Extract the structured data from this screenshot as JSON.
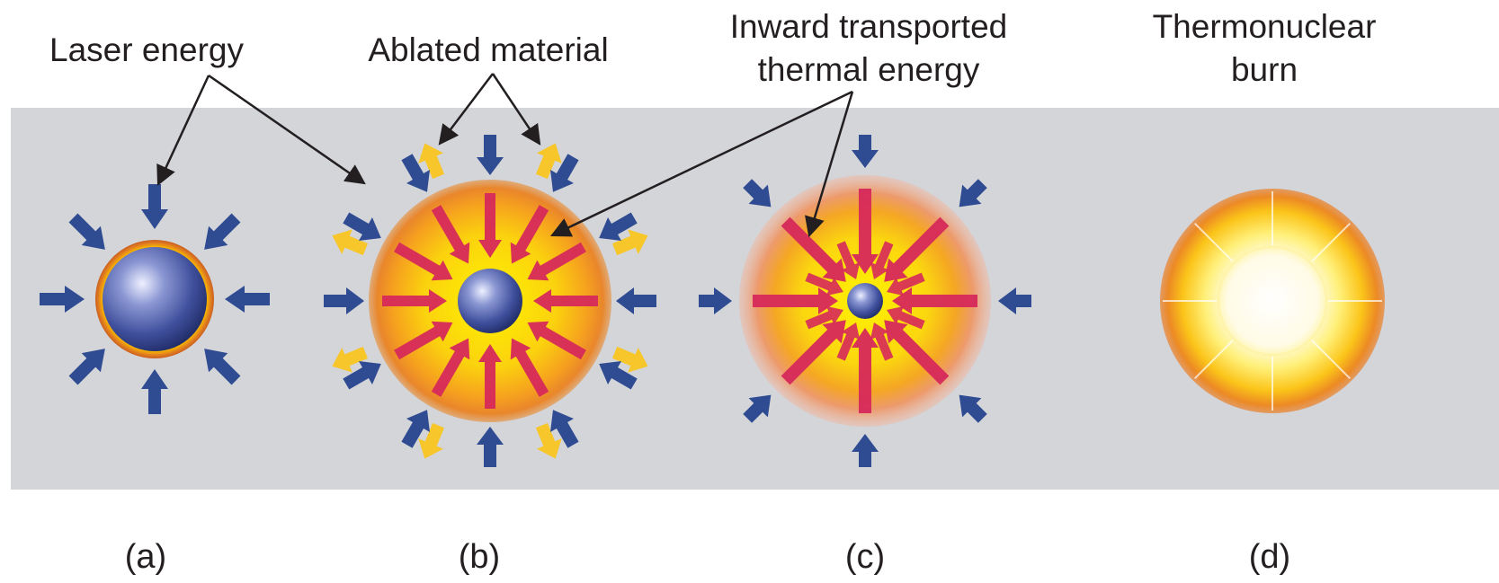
{
  "labels": {
    "laser_energy": "Laser energy",
    "ablated_material": "Ablated material",
    "inward_line1": "Inward transported",
    "inward_line2": "thermal energy",
    "thermo_line1": "Thermonuclear",
    "thermo_line2": "burn"
  },
  "panels": [
    {
      "caption": "(a)"
    },
    {
      "caption": "(b)"
    },
    {
      "caption": "(c)"
    },
    {
      "caption": "(d)"
    }
  ],
  "colors": {
    "background_band": "#d3d5d9",
    "laser_arrow": "#2f4b92",
    "ablation_arrow": "#f7c62a",
    "thermal_arrow": "#d6295b",
    "capsule": "#4e5fa6",
    "plasma_outer": "#e9882a",
    "plasma_inner": "#fbd20e",
    "burn_core": "#fffbe6"
  }
}
